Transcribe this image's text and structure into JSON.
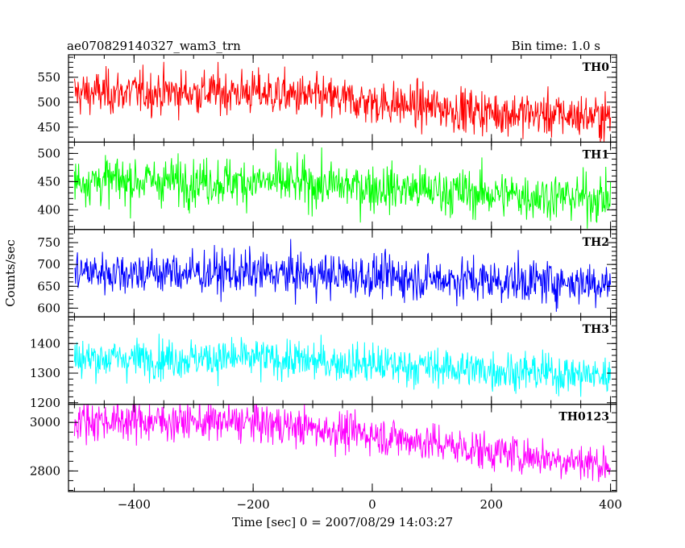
{
  "chart_data": {
    "type": "line",
    "title": "ae070829140327_wam3_trn",
    "subtitle": "Bin time: 1.0 s",
    "xlabel": "Time [sec] 0 = 2007/08/29 14:03:27",
    "ylabel": "Counts/sec",
    "xlim": [
      -510,
      410
    ],
    "x_ticks": [
      -400,
      -200,
      0,
      200,
      400
    ],
    "x_tick_labels": [
      "−400",
      "−200",
      "0",
      "200",
      "400"
    ],
    "x_start": -500,
    "x_end": 400,
    "bin": 1.0,
    "grid": false,
    "panels": [
      {
        "name": "TH0",
        "color": "#ff0000",
        "ylim": [
          420,
          595
        ],
        "y_ticks": [
          450,
          500,
          550
        ],
        "y_tick_labels": [
          "450",
          "500",
          "550"
        ],
        "trend": [
          [
            -500,
            518
          ],
          [
            -400,
            520
          ],
          [
            -200,
            520
          ],
          [
            0,
            500
          ],
          [
            200,
            480
          ],
          [
            400,
            470
          ]
        ],
        "noise": 22
      },
      {
        "name": "TH1",
        "color": "#00ff00",
        "ylim": [
          365,
          520
        ],
        "y_ticks": [
          400,
          450,
          500
        ],
        "y_tick_labels": [
          "400",
          "450",
          "500"
        ],
        "trend": [
          [
            -500,
            452
          ],
          [
            -200,
            450
          ],
          [
            0,
            440
          ],
          [
            200,
            428
          ],
          [
            400,
            420
          ]
        ],
        "noise": 21
      },
      {
        "name": "TH2",
        "color": "#0000ff",
        "ylim": [
          580,
          780
        ],
        "y_ticks": [
          600,
          650,
          700,
          750
        ],
        "y_tick_labels": [
          "600",
          "650",
          "700",
          "750"
        ],
        "trend": [
          [
            -500,
            683
          ],
          [
            -200,
            680
          ],
          [
            0,
            673
          ],
          [
            200,
            663
          ],
          [
            400,
            658
          ]
        ],
        "noise": 25
      },
      {
        "name": "TH3",
        "color": "#00ffff",
        "ylim": [
          1195,
          1490
        ],
        "y_ticks": [
          1200,
          1300,
          1400
        ],
        "y_tick_labels": [
          "1200",
          "1300",
          "1400"
        ],
        "trend": [
          [
            -500,
            1350
          ],
          [
            -200,
            1350
          ],
          [
            0,
            1330
          ],
          [
            200,
            1310
          ],
          [
            400,
            1290
          ]
        ],
        "noise": 33
      },
      {
        "name": "TH0123",
        "color": "#ff00ff",
        "ylim": [
          2715,
          3075
        ],
        "y_ticks": [
          2800,
          3000
        ],
        "y_tick_labels": [
          "2800",
          "3000"
        ],
        "trend": [
          [
            -500,
            3010
          ],
          [
            -200,
            3000
          ],
          [
            0,
            2950
          ],
          [
            200,
            2880
          ],
          [
            400,
            2825
          ]
        ],
        "noise": 40
      }
    ]
  }
}
